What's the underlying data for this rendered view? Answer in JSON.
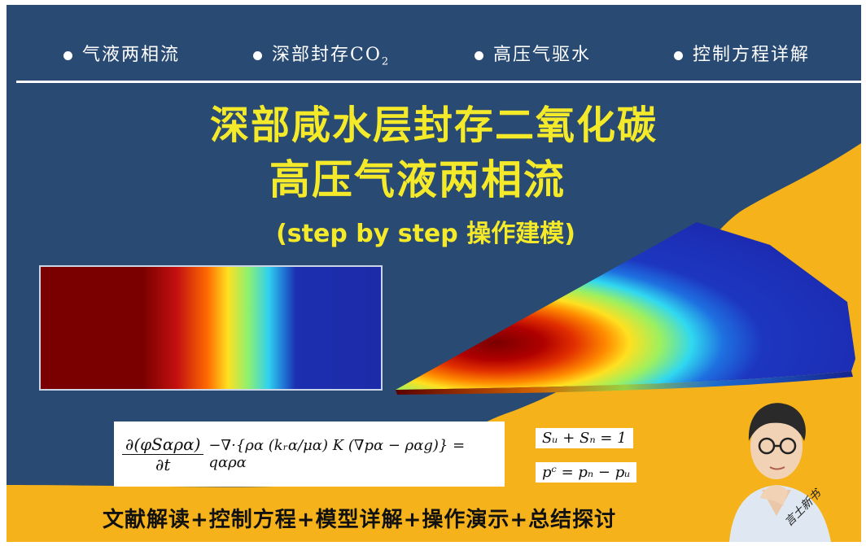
{
  "tags": [
    "气液两相流",
    "深部封存CO",
    "高压气驱水",
    "控制方程详解"
  ],
  "tag_sub": "2",
  "title_line1": "深部咸水层封存二氧化碳",
  "title_line2": "高压气液两相流",
  "subtitle": "(step by step 操作建模)",
  "equation_main": {
    "frac_num": "∂(φSαρα)",
    "frac_den": "∂t",
    "rest": "−∇·{ρα (kᵣα/μα) K (∇pα − ραg)} = qαρα"
  },
  "equation_saturation": "Sᵤ + Sₙ = 1",
  "equation_capillary": "pᶜ = pₙ − pᵤ",
  "bottom_text": "文献解读+控制方程+模型详解+操作演示+总结探讨",
  "signature": "言土新书",
  "colors": {
    "background": "#284a73",
    "accent_yellow": "#f5ea2a",
    "wave_orange": "#f5b21a"
  }
}
